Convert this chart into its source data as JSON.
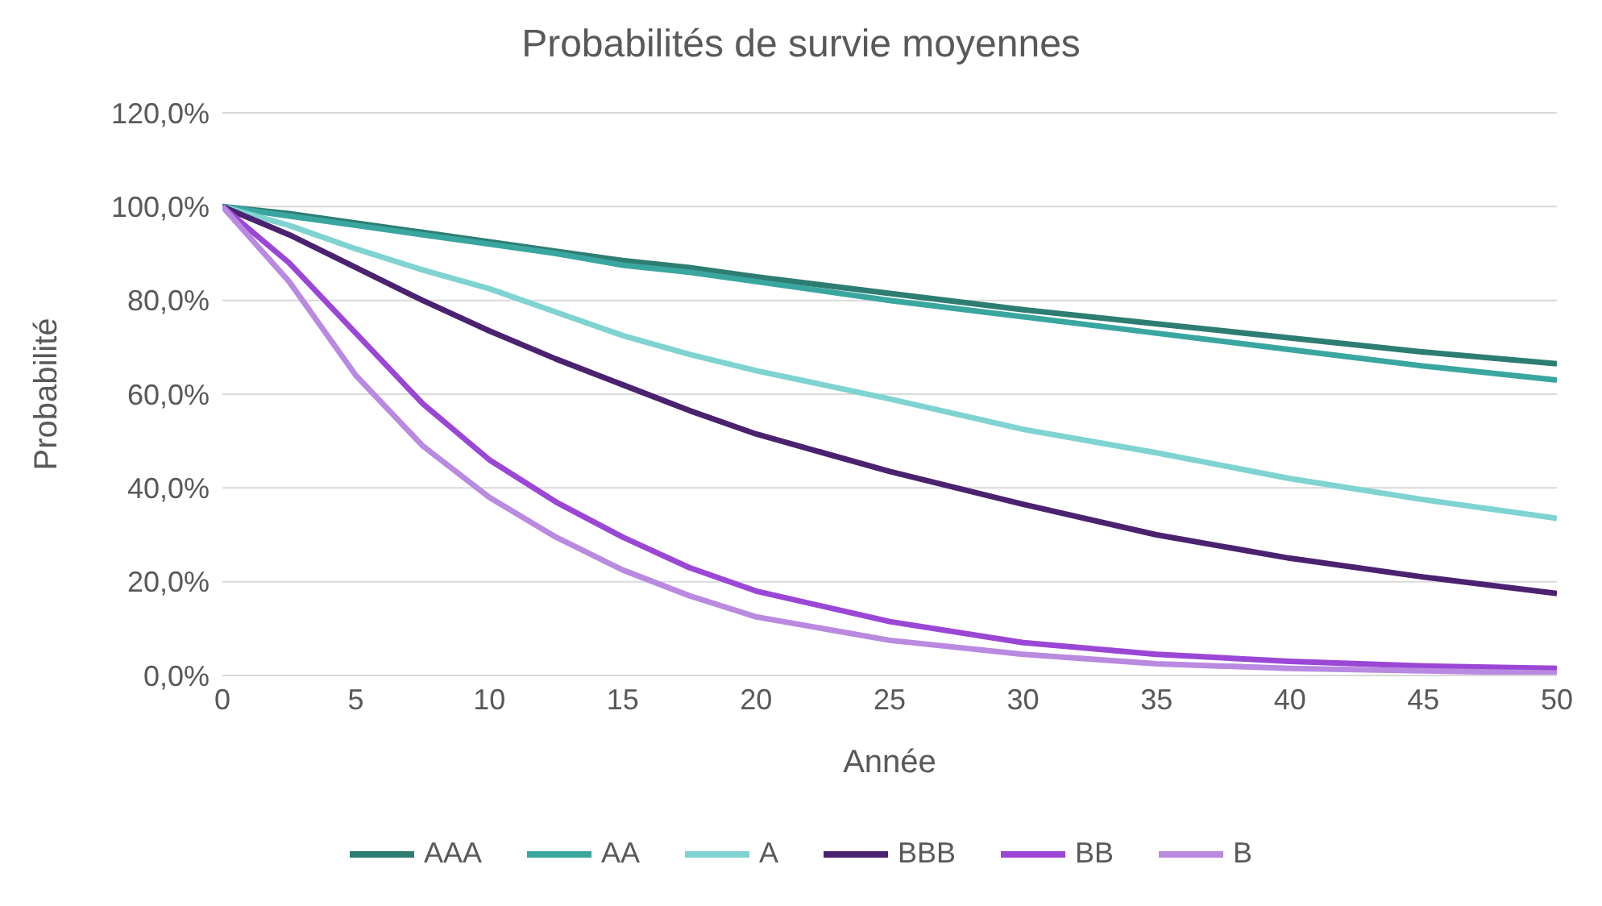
{
  "chart_data": {
    "type": "line",
    "title": "Probabilités de survie moyennes",
    "xlabel": "Année",
    "ylabel": "Probabilité",
    "x": [
      0,
      2.5,
      5,
      7.5,
      10,
      12.5,
      15,
      17.5,
      20,
      25,
      30,
      35,
      40,
      45,
      50
    ],
    "series": [
      {
        "name": "AAA",
        "color": "#2e7d73",
        "values": [
          100,
          98.5,
          96.5,
          94.5,
          92.5,
          90.5,
          88.5,
          87,
          85,
          81.5,
          78,
          75,
          72,
          69,
          66.5
        ]
      },
      {
        "name": "AA",
        "color": "#3aa6a0",
        "values": [
          100,
          98,
          96,
          94,
          92,
          90,
          87.5,
          86,
          84,
          80,
          76.5,
          73,
          69.5,
          66,
          63
        ]
      },
      {
        "name": "A",
        "color": "#7fd3d0",
        "values": [
          100,
          96,
          91,
          86.5,
          82.5,
          77.5,
          72.5,
          68.5,
          65,
          59,
          52.5,
          47.5,
          42,
          37.5,
          33.5
        ]
      },
      {
        "name": "BBB",
        "color": "#4b2270",
        "values": [
          100,
          94,
          87,
          80,
          73.5,
          67.5,
          62,
          56.5,
          51.5,
          43.5,
          36.5,
          30,
          25,
          21,
          17.5
        ]
      },
      {
        "name": "BB",
        "color": "#9b47d6",
        "values": [
          100,
          88,
          73,
          58,
          46,
          37,
          29.5,
          23,
          18,
          11.5,
          7,
          4.5,
          3,
          2,
          1.5
        ]
      },
      {
        "name": "B",
        "color": "#b98ae0",
        "values": [
          100,
          84,
          64,
          49,
          38,
          29.5,
          22.5,
          17,
          12.5,
          7.5,
          4.5,
          2.5,
          1.5,
          1,
          0.5
        ]
      }
    ],
    "xlim": [
      0,
      50
    ],
    "xticks": [
      0,
      5,
      10,
      15,
      20,
      25,
      30,
      35,
      40,
      45,
      50
    ],
    "ylim": [
      0,
      120
    ],
    "yticks": [
      {
        "value": 0,
        "label": "0,0%"
      },
      {
        "value": 20,
        "label": "20,0%"
      },
      {
        "value": 40,
        "label": "40,0%"
      },
      {
        "value": 60,
        "label": "60,0%"
      },
      {
        "value": 80,
        "label": "80,0%"
      },
      {
        "value": 100,
        "label": "100,0%"
      },
      {
        "value": 120,
        "label": "120,0%"
      }
    ],
    "grid": "y",
    "legend": "bottom",
    "marker": "none",
    "line_style": "solid"
  }
}
